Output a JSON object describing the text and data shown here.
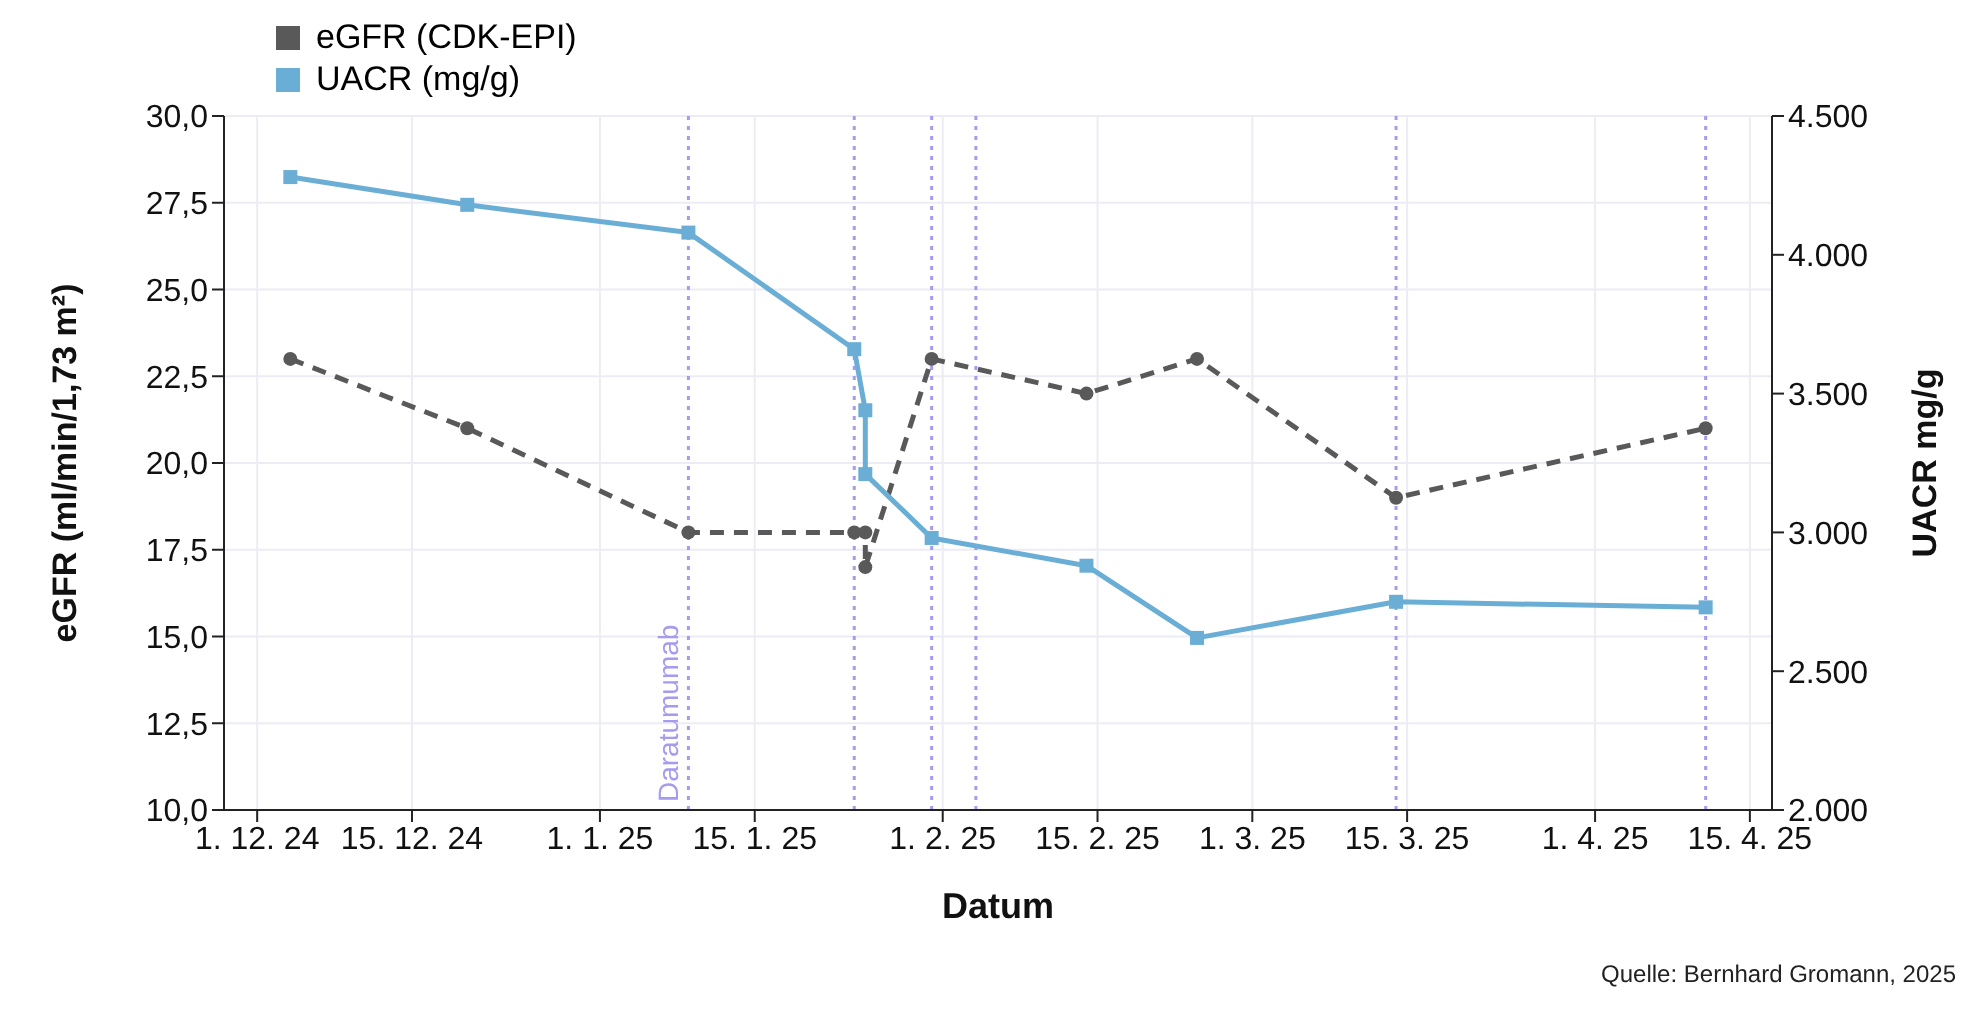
{
  "chart_data": {
    "type": "line",
    "xlabel": "Datum",
    "ylabel": "eGFR (ml/min/1,73 m²)",
    "y2label": "UACR mg/g",
    "annotations": [
      "Quelle: Bernhard Gromann, 2025"
    ],
    "series": [
      {
        "name": "eGFR (CDK-EPI)",
        "color": "#595959",
        "line_style": "dashed",
        "marker": "circle",
        "x": [
          "2024-12-04",
          "2024-12-20",
          "2025-01-09",
          "2025-01-24",
          "2025-01-25",
          "2025-01-25",
          "2025-01-31",
          "2025-02-14",
          "2025-02-24",
          "2025-03-14",
          "2025-04-11"
        ],
        "values": [
          23,
          21,
          18,
          18,
          18,
          17,
          23,
          22,
          23,
          19,
          21
        ]
      },
      {
        "name": "UACR (mg/g)",
        "color": "#6aaed6",
        "line_style": "solid",
        "marker": "square",
        "axis": "y2",
        "x": [
          "2024-12-04",
          "2024-12-20",
          "2025-01-09",
          "2025-01-24",
          "2025-01-25",
          "2025-01-25",
          "2025-01-31",
          "2025-02-14",
          "2025-02-24",
          "2025-03-14",
          "2025-04-11"
        ],
        "values": [
          4280,
          4180,
          4080,
          3660,
          3440,
          3210,
          2980,
          2880,
          2620,
          2750,
          2730
        ]
      }
    ],
    "xlim": [
      "2024-11-28",
      "2025-04-17"
    ],
    "xticks": [
      {
        "value": "2024-12-01",
        "label": "1. 12. 24"
      },
      {
        "value": "2024-12-15",
        "label": "15. 12. 24"
      },
      {
        "value": "2025-01-01",
        "label": "1. 1. 25"
      },
      {
        "value": "2025-01-15",
        "label": "15. 1. 25"
      },
      {
        "value": "2025-02-01",
        "label": "1. 2. 25"
      },
      {
        "value": "2025-02-15",
        "label": "15. 2. 25"
      },
      {
        "value": "2025-03-01",
        "label": "1. 3. 25"
      },
      {
        "value": "2025-03-15",
        "label": "15. 3. 25"
      },
      {
        "value": "2025-04-01",
        "label": "1. 4. 25"
      },
      {
        "value": "2025-04-15",
        "label": "15. 4. 25"
      }
    ],
    "ylim": [
      10,
      30
    ],
    "yticks": [
      {
        "value": 10,
        "label": "10,0"
      },
      {
        "value": 12.5,
        "label": "12,5"
      },
      {
        "value": 15,
        "label": "15,0"
      },
      {
        "value": 17.5,
        "label": "17,5"
      },
      {
        "value": 20,
        "label": "20,0"
      },
      {
        "value": 22.5,
        "label": "22,5"
      },
      {
        "value": 25,
        "label": "25,0"
      },
      {
        "value": 27.5,
        "label": "27,5"
      },
      {
        "value": 30,
        "label": "30,0"
      }
    ],
    "y2lim": [
      2000,
      4500
    ],
    "y2ticks": [
      {
        "value": 2000,
        "label": "2.000"
      },
      {
        "value": 2500,
        "label": "2.500"
      },
      {
        "value": 3000,
        "label": "3.000"
      },
      {
        "value": 3500,
        "label": "3.500"
      },
      {
        "value": 4000,
        "label": "4.000"
      },
      {
        "value": 4500,
        "label": "4.500"
      }
    ],
    "ref_lines": [
      {
        "axis": "x",
        "value": "2025-01-09",
        "label": "Daratumumab",
        "color": "#a59cf0",
        "line_style": "dotted"
      },
      {
        "axis": "x",
        "value": "2025-01-24",
        "label": null,
        "color": "#a59cf0",
        "line_style": "dotted"
      },
      {
        "axis": "x",
        "value": "2025-01-31",
        "label": null,
        "color": "#a59cf0",
        "line_style": "dotted"
      },
      {
        "axis": "x",
        "value": "2025-02-04",
        "label": null,
        "color": "#a59cf0",
        "line_style": "dotted"
      },
      {
        "axis": "x",
        "value": "2025-03-14",
        "label": null,
        "color": "#a59cf0",
        "line_style": "dotted"
      },
      {
        "axis": "x",
        "value": "2025-04-11",
        "label": null,
        "color": "#a59cf0",
        "line_style": "dotted"
      }
    ],
    "grid": true,
    "legend": "top"
  }
}
